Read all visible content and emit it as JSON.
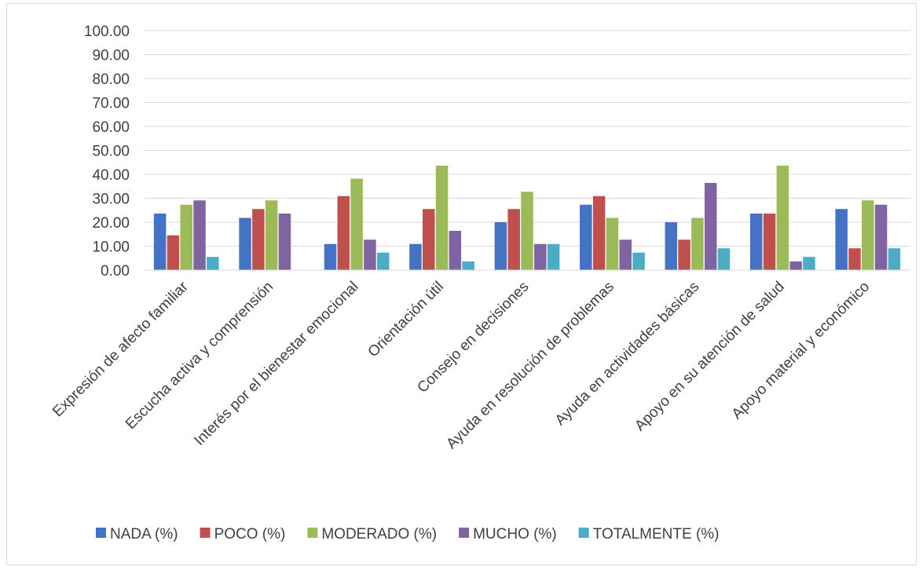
{
  "chart_data": {
    "type": "bar",
    "title": "",
    "xlabel": "",
    "ylabel": "",
    "ylim": [
      0,
      100
    ],
    "y_ticks": [
      "0.00",
      "10.00",
      "20.00",
      "30.00",
      "40.00",
      "50.00",
      "60.00",
      "70.00",
      "80.00",
      "90.00",
      "100.00"
    ],
    "grid": true,
    "legend_position": "bottom",
    "categories": [
      "Expresión de afecto familiar",
      "Escucha activa y comprensión",
      "Interés por el bienestar emocional",
      "Orientación útil",
      "Consejo en decisiones",
      "Ayuda en resolución de problemas",
      "Ayuda en actividades básicas",
      "Apoyo en su atención de salud",
      "Apoyo material y económico"
    ],
    "series": [
      {
        "name": "NADA (%)",
        "color": "#4472c4",
        "values": [
          23.6,
          21.8,
          10.9,
          10.9,
          20.0,
          27.3,
          20.0,
          23.6,
          25.5
        ]
      },
      {
        "name": "POCO (%)",
        "color": "#c0504d",
        "values": [
          14.5,
          25.5,
          30.9,
          25.5,
          25.5,
          30.9,
          12.7,
          23.6,
          9.1
        ]
      },
      {
        "name": "MODERADO (%)",
        "color": "#9bbb59",
        "values": [
          27.3,
          29.1,
          38.2,
          43.6,
          32.7,
          21.8,
          21.8,
          43.6,
          29.1
        ]
      },
      {
        "name": "MUCHO (%)",
        "color": "#8064a2",
        "values": [
          29.1,
          23.6,
          12.7,
          16.4,
          10.9,
          12.7,
          36.4,
          3.6,
          27.3
        ]
      },
      {
        "name": "TOTALMENTE (%)",
        "color": "#4bacc6",
        "values": [
          5.5,
          0,
          7.3,
          3.6,
          10.9,
          7.3,
          9.1,
          5.5,
          9.1
        ]
      }
    ]
  }
}
